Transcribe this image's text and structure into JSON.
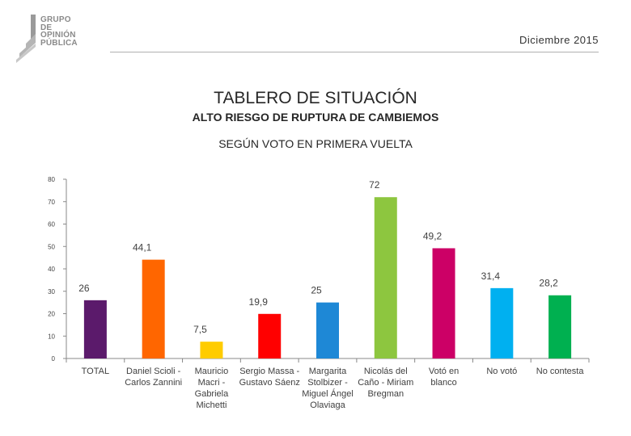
{
  "logo": {
    "lines": [
      "GRUPO",
      "DE",
      "OPINIÓN",
      "PÚBLICA"
    ]
  },
  "header": {
    "date": "Diciembre 2015",
    "title": "TABLERO DE SITUACIÓN",
    "subtitle": "ALTO RIESGO DE RUPTURA DE CAMBIEMOS",
    "section": "SEGÚN VOTO EN PRIMERA VUELTA"
  },
  "chart_data": {
    "type": "bar",
    "title": "SEGÚN VOTO EN PRIMERA VUELTA",
    "xlabel": "",
    "ylabel": "",
    "ylim": [
      0,
      80
    ],
    "yticks": [
      "0",
      "10",
      "20",
      "30",
      "40",
      "50",
      "60",
      "70",
      "80"
    ],
    "grid": false,
    "categories": [
      [
        "TOTAL"
      ],
      [
        "Daniel Scioli -",
        "Carlos Zannini"
      ],
      [
        "Mauricio",
        "Macri -",
        "Gabriela",
        "Michetti"
      ],
      [
        "Sergio Massa -",
        "Gustavo Sáenz"
      ],
      [
        "Margarita",
        "Stolbizer -",
        "Miguel Ángel",
        "Olaviaga"
      ],
      [
        "Nicolás del",
        "Caño - Miriam",
        "Bregman"
      ],
      [
        "Votó en",
        "blanco"
      ],
      [
        "No votó"
      ],
      [
        "No contesta"
      ]
    ],
    "values": [
      26,
      44.1,
      7.5,
      19.9,
      25,
      72,
      49.2,
      31.4,
      28.2
    ],
    "labels": [
      "26",
      "44,1",
      "7,5",
      "19,9",
      "25",
      "72",
      "49,2",
      "31,4",
      "28,2"
    ],
    "colors": [
      "#5b1a6b",
      "#ff6600",
      "#ffcc00",
      "#ff0000",
      "#1e88d6",
      "#8dc63f",
      "#cc0066",
      "#00b0f0",
      "#00b050"
    ]
  }
}
